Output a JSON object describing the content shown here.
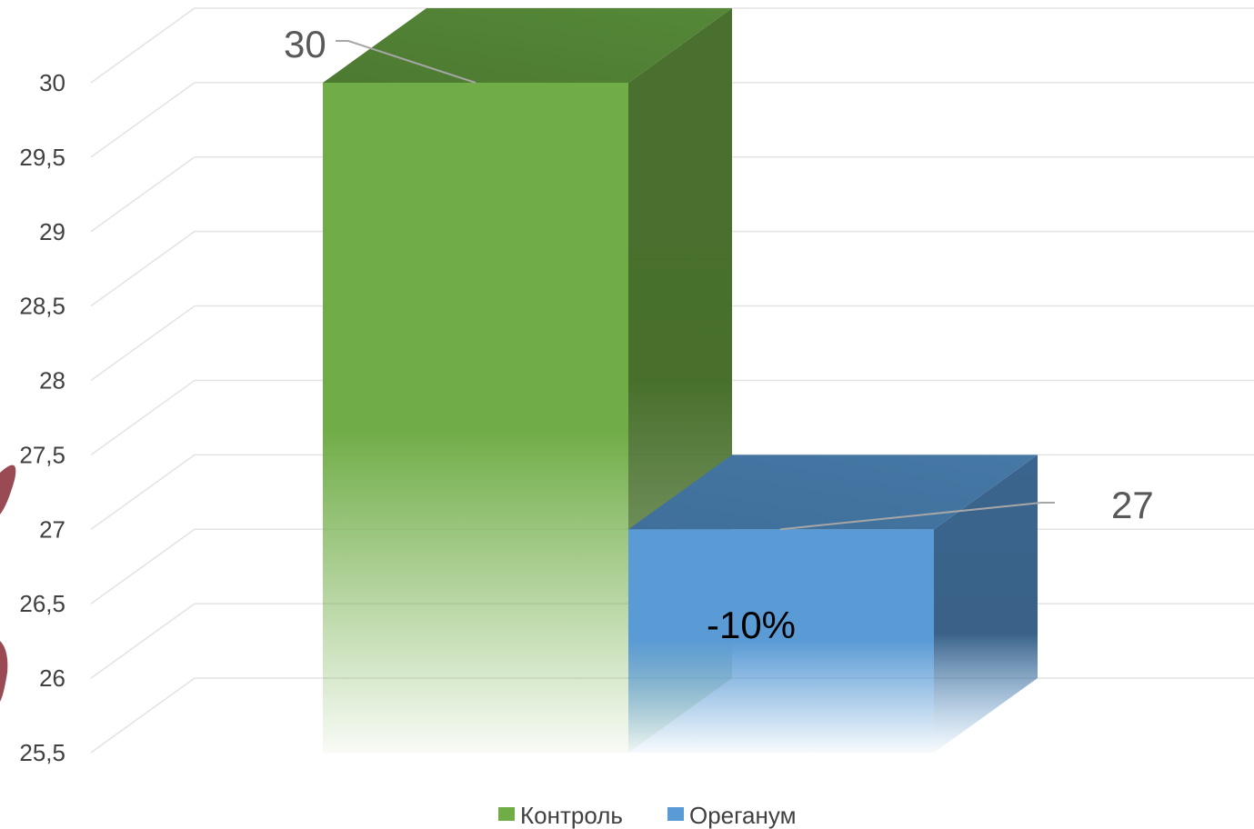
{
  "chart_data": {
    "type": "bar",
    "categories": [
      "Контроль",
      "Ореганум"
    ],
    "series": [
      {
        "name": "Контроль",
        "value": 30,
        "color": "#70ad47"
      },
      {
        "name": "Ореганум",
        "value": 27,
        "color": "#5b9bd5"
      }
    ],
    "data_labels": [
      "30",
      "27"
    ],
    "annotation": "-10%",
    "ylim": [
      25.5,
      30
    ],
    "yticks": [
      "25,5",
      "26",
      "26,5",
      "27",
      "27,5",
      "28",
      "28,5",
      "29",
      "29,5",
      "30"
    ],
    "ytick_values": [
      25.5,
      26,
      26.5,
      27,
      27.5,
      28,
      28.5,
      29,
      29.5,
      30
    ],
    "grid": true,
    "style": "3d",
    "legend": "bottom",
    "title": "",
    "xlabel": "",
    "ylabel": ""
  }
}
